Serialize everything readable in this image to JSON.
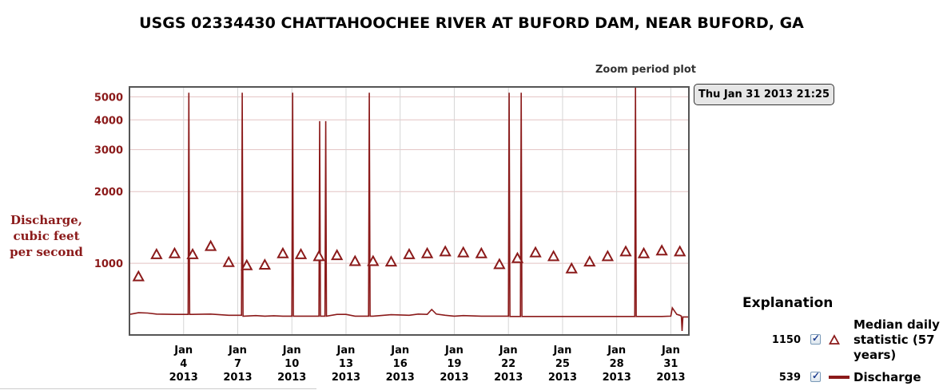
{
  "chart_data": {
    "type": "line",
    "title": "USGS 02334430 CHATTAHOOCHEE RIVER AT BUFORD DAM, NEAR BUFORD, GA",
    "ylabel": "Discharge, cubic feet per second",
    "xlabel": "",
    "y_scale": "log",
    "ylim": [
      500,
      5500
    ],
    "y_ticks": [
      1000,
      2000,
      3000,
      4000,
      5000
    ],
    "x_range": [
      "2013-01-01 00:00",
      "2013-02-01 00:00"
    ],
    "x_ticks": [
      {
        "date": "2013-01-04",
        "label": [
          "Jan",
          "4",
          "2013"
        ]
      },
      {
        "date": "2013-01-07",
        "label": [
          "Jan",
          "7",
          "2013"
        ]
      },
      {
        "date": "2013-01-10",
        "label": [
          "Jan",
          "10",
          "2013"
        ]
      },
      {
        "date": "2013-01-13",
        "label": [
          "Jan",
          "13",
          "2013"
        ]
      },
      {
        "date": "2013-01-16",
        "label": [
          "Jan",
          "16",
          "2013"
        ]
      },
      {
        "date": "2013-01-19",
        "label": [
          "Jan",
          "19",
          "2013"
        ]
      },
      {
        "date": "2013-01-22",
        "label": [
          "Jan",
          "22",
          "2013"
        ]
      },
      {
        "date": "2013-01-25",
        "label": [
          "Jan",
          "25",
          "2013"
        ]
      },
      {
        "date": "2013-01-28",
        "label": [
          "Jan",
          "28",
          "2013"
        ]
      },
      {
        "date": "2013-01-31",
        "label": [
          "Jan",
          "31",
          "2013"
        ]
      }
    ],
    "grid": true,
    "legend_position": "bottom-right",
    "colors": {
      "series": "#8b1a1a",
      "grid": "#e3c2c2",
      "frame": "#555555"
    },
    "series": [
      {
        "name": "Median daily statistic (57 years)",
        "marker": "triangle",
        "x": [
          "2013-01-01 12:00",
          "2013-01-02 12:00",
          "2013-01-03 12:00",
          "2013-01-04 12:00",
          "2013-01-05 12:00",
          "2013-01-06 12:00",
          "2013-01-07 12:00",
          "2013-01-08 12:00",
          "2013-01-09 12:00",
          "2013-01-10 12:00",
          "2013-01-11 12:00",
          "2013-01-12 12:00",
          "2013-01-13 12:00",
          "2013-01-14 12:00",
          "2013-01-15 12:00",
          "2013-01-16 12:00",
          "2013-01-17 12:00",
          "2013-01-18 12:00",
          "2013-01-19 12:00",
          "2013-01-20 12:00",
          "2013-01-21 12:00",
          "2013-01-22 12:00",
          "2013-01-23 12:00",
          "2013-01-24 12:00",
          "2013-01-25 12:00",
          "2013-01-26 12:00",
          "2013-01-27 12:00",
          "2013-01-28 12:00",
          "2013-01-29 12:00",
          "2013-01-30 12:00",
          "2013-01-31 12:00"
        ],
        "y": [
          880,
          1090,
          1100,
          1090,
          1180,
          1010,
          980,
          985,
          1100,
          1090,
          1070,
          1080,
          1020,
          1020,
          1015,
          1090,
          1100,
          1120,
          1110,
          1100,
          990,
          1050,
          1110,
          1070,
          950,
          1015,
          1070,
          1120,
          1100,
          1130,
          1120
        ]
      },
      {
        "name": "Discharge",
        "marker": "line",
        "x": [
          "2013-01-01 00:00",
          "2013-01-01 06:00",
          "2013-01-01 12:00",
          "2013-01-02 00:00",
          "2013-01-02 12:00",
          "2013-01-03 12:00",
          "2013-01-04 06:00",
          "2013-01-04 07:00",
          "2013-01-04 08:00",
          "2013-01-04 12:00",
          "2013-01-05 12:00",
          "2013-01-06 12:00",
          "2013-01-07 05:00",
          "2013-01-07 06:00",
          "2013-01-07 07:00",
          "2013-01-07 08:00",
          "2013-01-08 00:00",
          "2013-01-08 12:00",
          "2013-01-09 00:00",
          "2013-01-09 12:00",
          "2013-01-10 00:00",
          "2013-01-10 01:00",
          "2013-01-10 02:00",
          "2013-01-10 12:00",
          "2013-01-11 00:00",
          "2013-01-11 12:00",
          "2013-01-11 13:00",
          "2013-01-11 14:00",
          "2013-01-11 20:00",
          "2013-01-11 21:00",
          "2013-01-11 22:00",
          "2013-01-12 12:00",
          "2013-01-13 00:00",
          "2013-01-13 12:00",
          "2013-01-14 06:00",
          "2013-01-14 07:00",
          "2013-01-14 08:00",
          "2013-01-14 12:00",
          "2013-01-15 12:00",
          "2013-01-16 12:00",
          "2013-01-17 00:00",
          "2013-01-17 12:00",
          "2013-01-17 18:00",
          "2013-01-18 00:00",
          "2013-01-18 12:00",
          "2013-01-19 00:00",
          "2013-01-19 12:00",
          "2013-01-20 12:00",
          "2013-01-21 12:00",
          "2013-01-22 00:00",
          "2013-01-22 01:00",
          "2013-01-22 02:00",
          "2013-01-22 12:00",
          "2013-01-22 16:00",
          "2013-01-22 17:00",
          "2013-01-22 18:00",
          "2013-01-23 12:00",
          "2013-01-24 12:00",
          "2013-01-25 12:00",
          "2013-01-26 12:00",
          "2013-01-27 12:00",
          "2013-01-28 12:00",
          "2013-01-29 00:00",
          "2013-01-29 01:00",
          "2013-01-29 02:00",
          "2013-01-29 12:00",
          "2013-01-30 12:00",
          "2013-01-31 00:00",
          "2013-01-31 02:00",
          "2013-01-31 08:00",
          "2013-01-31 12:00",
          "2013-01-31 14:00",
          "2013-01-31 15:00",
          "2013-01-31 16:00",
          "2013-01-31 18:00",
          "2013-02-01 00:00"
        ],
        "y": [
          610,
          615,
          620,
          618,
          612,
          610,
          610,
          5200,
          610,
          610,
          612,
          605,
          605,
          5200,
          600,
          600,
          603,
          600,
          602,
          600,
          600,
          5200,
          600,
          600,
          600,
          600,
          3950,
          600,
          600,
          3950,
          600,
          610,
          610,
          600,
          600,
          5200,
          600,
          600,
          608,
          605,
          612,
          610,
          640,
          612,
          605,
          600,
          603,
          600,
          600,
          600,
          5200,
          598,
          598,
          598,
          5200,
          598,
          598,
          598,
          598,
          598,
          598,
          598,
          598,
          5500,
          598,
          598,
          598,
          600,
          650,
          610,
          605,
          600,
          520,
          595,
          595,
          595
        ]
      }
    ]
  },
  "header": {
    "zoom_label": "Zoom period plot",
    "date_readout": "Thu Jan 31 2013 21:25"
  },
  "legend": {
    "title": "Explanation",
    "items": [
      {
        "count": "1150",
        "label": "Median daily statistic (57 years)",
        "checked": true
      },
      {
        "count": "539",
        "label": "Discharge",
        "checked": true
      }
    ]
  }
}
